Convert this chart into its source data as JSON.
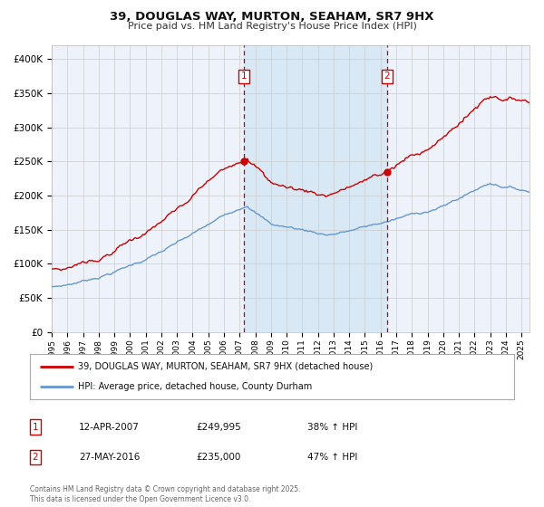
{
  "title": "39, DOUGLAS WAY, MURTON, SEAHAM, SR7 9HX",
  "subtitle": "Price paid vs. HM Land Registry's House Price Index (HPI)",
  "legend_line1": "39, DOUGLAS WAY, MURTON, SEAHAM, SR7 9HX (detached house)",
  "legend_line2": "HPI: Average price, detached house, County Durham",
  "annotation1_date": "12-APR-2007",
  "annotation1_price": "£249,995",
  "annotation1_hpi": "38% ↑ HPI",
  "annotation1_year": 2007.28,
  "annotation1_price_val": 249995,
  "annotation2_date": "27-MAY-2016",
  "annotation2_price": "£235,000",
  "annotation2_hpi": "47% ↑ HPI",
  "annotation2_year": 2016.41,
  "annotation2_price_val": 235000,
  "copyright": "Contains HM Land Registry data © Crown copyright and database right 2025.\nThis data is licensed under the Open Government Licence v3.0.",
  "red_color": "#cc0000",
  "blue_color": "#6699cc",
  "bg_color": "#ffffff",
  "chart_bg": "#edf2fb",
  "shade_color": "#d8e8f5",
  "grid_color": "#cccccc",
  "ylim": [
    0,
    420000
  ],
  "yticks": [
    0,
    50000,
    100000,
    150000,
    200000,
    250000,
    300000,
    350000,
    400000
  ],
  "xlim_start": 1995.0,
  "xlim_end": 2025.5
}
